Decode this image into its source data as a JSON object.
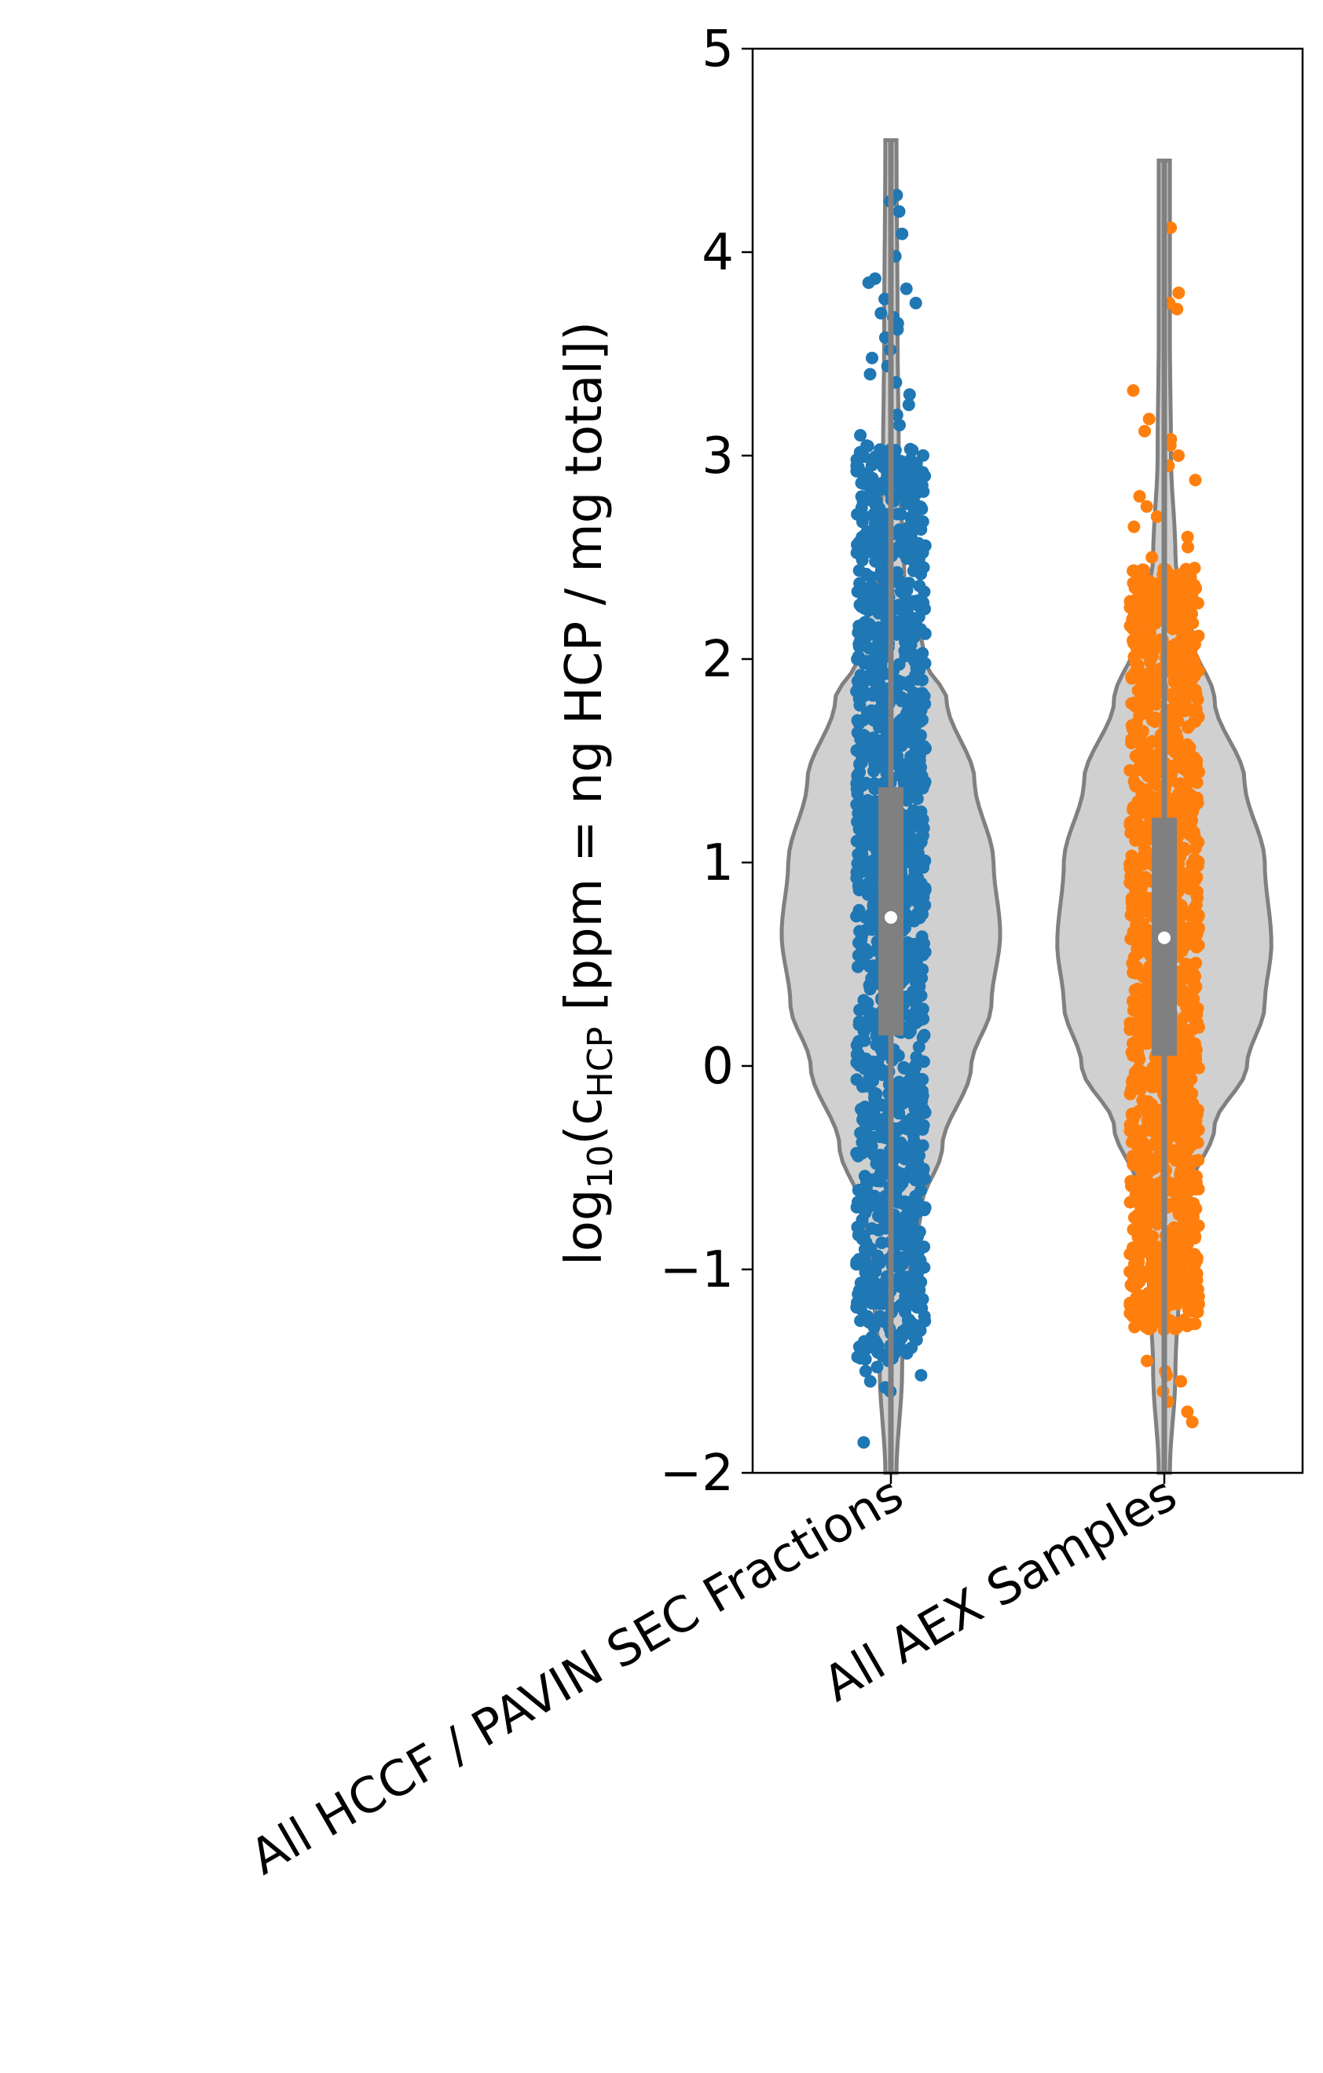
{
  "chart_data": {
    "type": "violin",
    "title": "",
    "xlabel": "",
    "ylabel": {
      "prefix": "log",
      "sub1": "10",
      "mid": "(c",
      "sub2": "HCP",
      "suffix": " [ppm  =  ng HCP / mg total])"
    },
    "ylim": [
      -2,
      5
    ],
    "yticks": [
      -2,
      -1,
      0,
      1,
      2,
      3,
      4,
      5
    ],
    "ytick_labels": [
      "−2",
      "−1",
      "0",
      "1",
      "2",
      "3",
      "4",
      "5"
    ],
    "grid": false,
    "categories": [
      "All HCCF / PAVIN SEC Fractions",
      "All AEX Samples"
    ],
    "colors": {
      "violin_fill": "#d0d0d0",
      "violin_edge": "#808080",
      "box": "#808080",
      "median": "#ffffff",
      "series": [
        "#1f77b4",
        "#ff7f0e"
      ]
    },
    "series": [
      {
        "category": "All HCCF / PAVIN SEC Fractions",
        "whisker": [
          -2.0,
          4.55
        ],
        "q1": 0.15,
        "median": 0.73,
        "q3": 1.37,
        "dense_range": [
          -1.45,
          3.05
        ],
        "density": [
          [
            -2.0,
            0.05
          ],
          [
            -1.5,
            0.1
          ],
          [
            -1.0,
            0.17
          ],
          [
            -0.7,
            0.27
          ],
          [
            -0.4,
            0.46
          ],
          [
            0.0,
            0.72
          ],
          [
            0.3,
            0.9
          ],
          [
            0.65,
            0.98
          ],
          [
            1.0,
            0.92
          ],
          [
            1.4,
            0.75
          ],
          [
            1.8,
            0.5
          ],
          [
            2.0,
            0.3
          ],
          [
            2.4,
            0.12
          ],
          [
            3.0,
            0.07
          ],
          [
            3.6,
            0.06
          ],
          [
            4.55,
            0.05
          ]
        ],
        "outliers": [
          4.28,
          4.25,
          4.2,
          4.09,
          3.98,
          3.87,
          3.85,
          3.82,
          3.77,
          3.75,
          3.7,
          3.68,
          3.65,
          3.62,
          3.58,
          3.52,
          3.48,
          3.44,
          3.4,
          3.36,
          3.3,
          3.25,
          3.2,
          3.15,
          3.1,
          -1.5,
          -1.52,
          -1.55,
          -1.58,
          -1.6,
          -1.48,
          -1.85
        ]
      },
      {
        "category": "All AEX Samples",
        "whisker": [
          -2.0,
          4.45
        ],
        "q1": 0.05,
        "median": 0.63,
        "q3": 1.22,
        "dense_range": [
          -1.3,
          2.45
        ],
        "density": [
          [
            -2.0,
            0.05
          ],
          [
            -1.5,
            0.1
          ],
          [
            -1.0,
            0.14
          ],
          [
            -0.6,
            0.24
          ],
          [
            -0.3,
            0.45
          ],
          [
            0.0,
            0.74
          ],
          [
            0.3,
            0.9
          ],
          [
            0.6,
            0.96
          ],
          [
            1.0,
            0.9
          ],
          [
            1.4,
            0.72
          ],
          [
            1.8,
            0.45
          ],
          [
            2.1,
            0.25
          ],
          [
            2.5,
            0.1
          ],
          [
            3.0,
            0.06
          ],
          [
            3.6,
            0.05
          ],
          [
            4.45,
            0.05
          ]
        ],
        "outliers": [
          4.12,
          3.8,
          3.75,
          3.72,
          3.32,
          3.18,
          3.12,
          3.08,
          3.05,
          3.0,
          2.95,
          2.88,
          2.8,
          2.75,
          2.7,
          2.65,
          2.6,
          2.55,
          2.5,
          -1.45,
          -1.5,
          -1.52,
          -1.55,
          -1.6,
          -1.65,
          -1.7,
          -1.75
        ]
      }
    ]
  }
}
